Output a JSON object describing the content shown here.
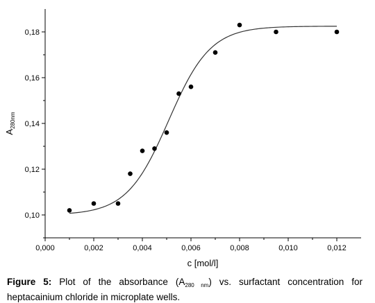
{
  "chart_data": {
    "type": "scatter",
    "title": "",
    "xlabel": "c [mol/l]",
    "ylabel_main": "A",
    "ylabel_sub": "280nm",
    "xlim": [
      0.0,
      0.013
    ],
    "ylim": [
      0.09,
      0.19
    ],
    "x_ticks": [
      0.0,
      0.002,
      0.004,
      0.006,
      0.008,
      0.01,
      0.012
    ],
    "x_tick_labels": [
      "0,000",
      "0,002",
      "0,004",
      "0,006",
      "0,008",
      "0,010",
      "0,012"
    ],
    "y_ticks": [
      0.1,
      0.12,
      0.14,
      0.16,
      0.18
    ],
    "y_tick_labels": [
      "0,10",
      "0,12",
      "0,14",
      "0,16",
      "0,18"
    ],
    "grid": false,
    "legend": "none",
    "points": {
      "x": [
        0.001,
        0.002,
        0.003,
        0.0035,
        0.004,
        0.0045,
        0.005,
        0.0055,
        0.006,
        0.007,
        0.008,
        0.0095,
        0.012
      ],
      "y": [
        0.102,
        0.105,
        0.105,
        0.118,
        0.128,
        0.129,
        0.136,
        0.153,
        0.156,
        0.171,
        0.183,
        0.18,
        0.18
      ]
    },
    "fit_curve": {
      "type": "sigmoidal",
      "x_start": 0.001,
      "x_end": 0.012,
      "bottom": 0.1,
      "top": 0.1825,
      "x0": 0.00508,
      "slope": 0.00086
    },
    "colors": {
      "points": "#000000",
      "curve": "#333333",
      "axes": "#000000"
    }
  },
  "caption": {
    "label": "Figure 5:",
    "text_before": " Plot of the absorbance (A",
    "subscript": "280 nm",
    "text_after": ") vs. surfactant concentration for heptacainium chloride in microplate wells."
  }
}
